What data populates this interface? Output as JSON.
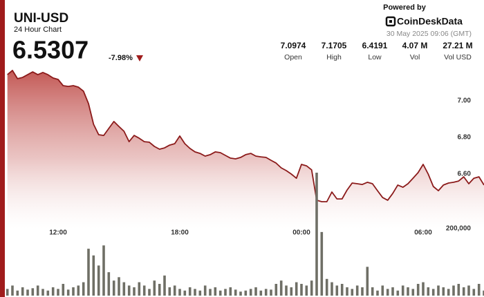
{
  "header": {
    "title": "UNI-USD",
    "subtitle": "24 Hour Chart",
    "price": "6.5307",
    "change": "-7.98%"
  },
  "stats": [
    {
      "value": "7.0974",
      "label": "Open"
    },
    {
      "value": "7.1705",
      "label": "High"
    },
    {
      "value": "6.4191",
      "label": "Low"
    },
    {
      "value": "4.07 M",
      "label": "Vol"
    },
    {
      "value": "27.21 M",
      "label": "Vol USD"
    }
  ],
  "branding": {
    "powered_by": "Powered by",
    "logo": "CoinDeskData",
    "timestamp": "30 May 2025 09:06 (GMT)"
  },
  "chart_data": {
    "type": "line",
    "x": [
      9.5,
      9.75,
      10,
      10.25,
      10.5,
      10.75,
      11,
      11.25,
      11.5,
      11.75,
      12,
      12.25,
      12.5,
      12.75,
      13,
      13.25,
      13.5,
      13.75,
      14,
      14.25,
      14.5,
      14.75,
      15,
      15.25,
      15.5,
      15.75,
      16,
      16.25,
      16.5,
      16.75,
      17,
      17.25,
      17.5,
      17.75,
      18,
      18.25,
      18.5,
      18.75,
      19,
      19.25,
      19.5,
      19.75,
      20,
      20.25,
      20.5,
      20.75,
      21,
      21.25,
      21.5,
      21.75,
      22,
      22.25,
      22.5,
      22.75,
      23,
      23.25,
      23.5,
      23.75,
      24,
      24.25,
      24.5,
      24.75,
      25,
      25.25,
      25.5,
      25.75,
      26,
      26.25,
      26.5,
      26.75,
      27,
      27.25,
      27.5,
      27.75,
      28,
      28.25,
      28.5,
      28.75,
      29,
      29.25,
      29.5,
      29.75,
      30,
      30.25,
      30.5,
      30.75,
      31,
      31.25,
      31.5,
      31.75,
      32,
      32.25,
      32.5,
      32.75,
      33
    ],
    "series": [
      {
        "color": "#8b1a1a",
        "values": [
          7.143,
          7.166,
          7.121,
          7.128,
          7.143,
          7.158,
          7.143,
          7.155,
          7.143,
          7.125,
          7.117,
          7.083,
          7.079,
          7.083,
          7.075,
          7.053,
          6.985,
          6.872,
          6.815,
          6.811,
          6.849,
          6.887,
          6.86,
          6.834,
          6.777,
          6.811,
          6.796,
          6.777,
          6.774,
          6.751,
          6.736,
          6.743,
          6.758,
          6.766,
          6.808,
          6.766,
          6.74,
          6.721,
          6.713,
          6.698,
          6.706,
          6.721,
          6.717,
          6.702,
          6.687,
          6.683,
          6.691,
          6.706,
          6.713,
          6.698,
          6.694,
          6.691,
          6.675,
          6.66,
          6.634,
          6.619,
          6.6,
          6.577,
          6.653,
          6.645,
          6.623,
          6.457,
          6.449,
          6.449,
          6.502,
          6.464,
          6.464,
          6.513,
          6.551,
          6.547,
          6.543,
          6.555,
          6.547,
          6.509,
          6.472,
          6.457,
          6.494,
          6.54,
          6.528,
          6.547,
          6.577,
          6.608,
          6.653,
          6.6,
          6.532,
          6.509,
          6.54,
          6.551,
          6.555,
          6.562,
          6.585,
          6.547,
          6.577,
          6.585,
          6.54
        ]
      },
      {
        "type": "bar",
        "axis": "y2",
        "color": "#6f6f66",
        "values": [
          20000,
          30000,
          15000,
          25000,
          18000,
          22000,
          30000,
          20000,
          15000,
          25000,
          20000,
          35000,
          18000,
          25000,
          30000,
          40000,
          140000,
          120000,
          90000,
          150000,
          70000,
          45000,
          55000,
          40000,
          30000,
          25000,
          40000,
          30000,
          20000,
          45000,
          35000,
          60000,
          25000,
          30000,
          20000,
          15000,
          25000,
          20000,
          15000,
          30000,
          20000,
          25000,
          15000,
          20000,
          25000,
          18000,
          12000,
          15000,
          20000,
          25000,
          15000,
          20000,
          18000,
          35000,
          45000,
          30000,
          25000,
          40000,
          35000,
          30000,
          45000,
          367000,
          190000,
          50000,
          40000,
          30000,
          35000,
          25000,
          20000,
          30000,
          25000,
          86000,
          25000,
          15000,
          30000,
          20000,
          25000,
          15000,
          30000,
          25000,
          20000,
          35000,
          40000,
          25000,
          20000,
          30000,
          25000,
          20000,
          30000,
          35000,
          25000,
          30000,
          20000,
          35000,
          15000
        ]
      }
    ],
    "xlim": [
      9.375,
      33
    ],
    "xticks": [
      {
        "value": 12,
        "label": "12:00"
      },
      {
        "value": 18,
        "label": "18:00"
      },
      {
        "value": 24,
        "label": "00:00"
      },
      {
        "value": 30,
        "label": "06:00"
      }
    ],
    "ylim": [
      6.3,
      7.2
    ],
    "yticks": [
      {
        "value": 6.6,
        "label": "6.60"
      },
      {
        "value": 6.8,
        "label": "6.80"
      },
      {
        "value": 7,
        "label": "7.00"
      }
    ],
    "y2lim": [
      0,
      400000
    ],
    "y2ticks": [
      {
        "value": 200000,
        "label": "200,000"
      }
    ],
    "grid": false
  }
}
